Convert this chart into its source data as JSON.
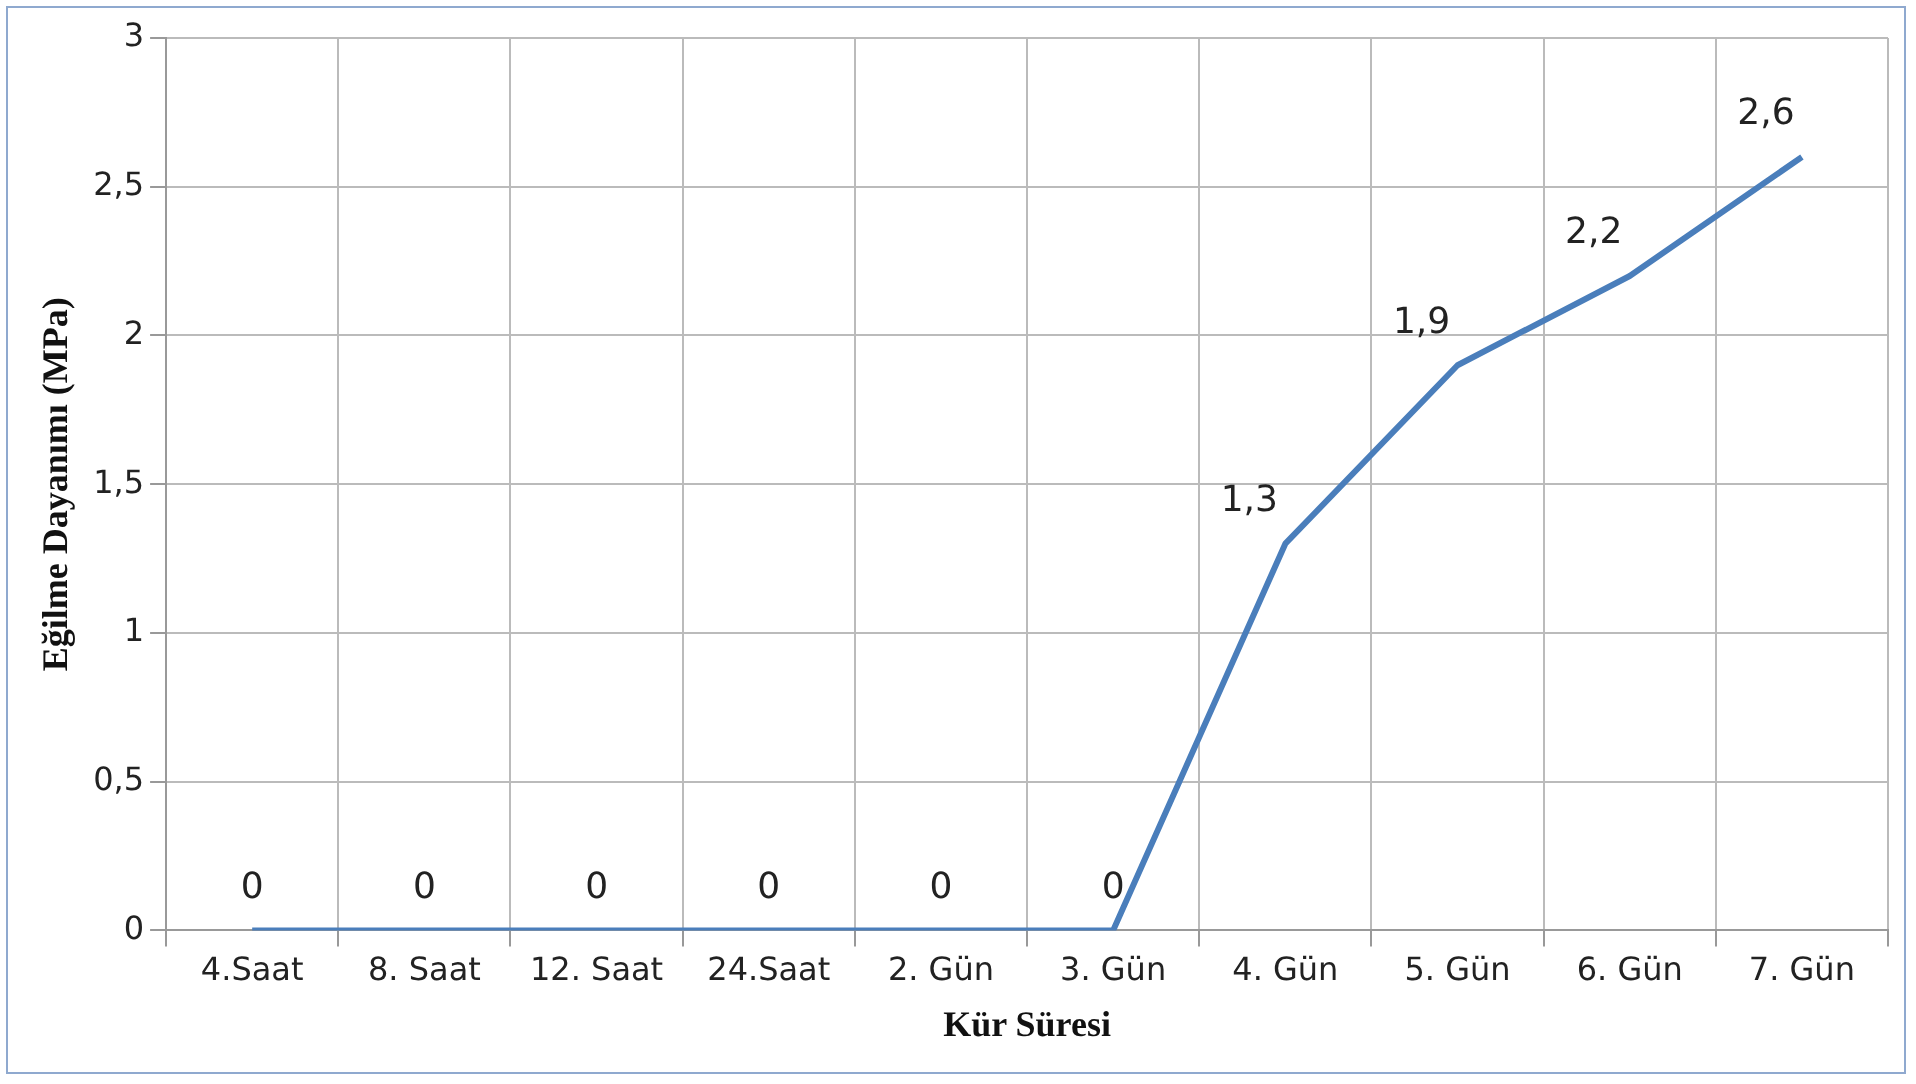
{
  "chart_data": {
    "type": "line",
    "xlabel": "Kür Süresi",
    "ylabel": "Eğilme Dayanımı (MPa)",
    "categories": [
      "4.Saat",
      "8. Saat",
      "12. Saat",
      "24.Saat",
      "2. Gün",
      "3. Gün",
      "4. Gün",
      "5. Gün",
      "6. Gün",
      "7. Gün"
    ],
    "series": [
      {
        "color": "#4a7ebb",
        "values": [
          0,
          0,
          0,
          0,
          0,
          0,
          1.3,
          1.9,
          2.2,
          2.6
        ],
        "value_labels": [
          "0",
          "0",
          "0",
          "0",
          "0",
          "0",
          "1,3",
          "1,9",
          "2,2",
          "2,6"
        ]
      }
    ],
    "ylim": [
      0,
      3
    ],
    "yticks": [
      0,
      {
        "value": 0.5,
        "label": "0,5"
      },
      1,
      {
        "value": 1.5,
        "label": "1,5"
      },
      2,
      {
        "value": 2.5,
        "label": "2,5"
      },
      3
    ],
    "grid": true,
    "legend": false,
    "marker": "none",
    "line_style": "solid"
  }
}
